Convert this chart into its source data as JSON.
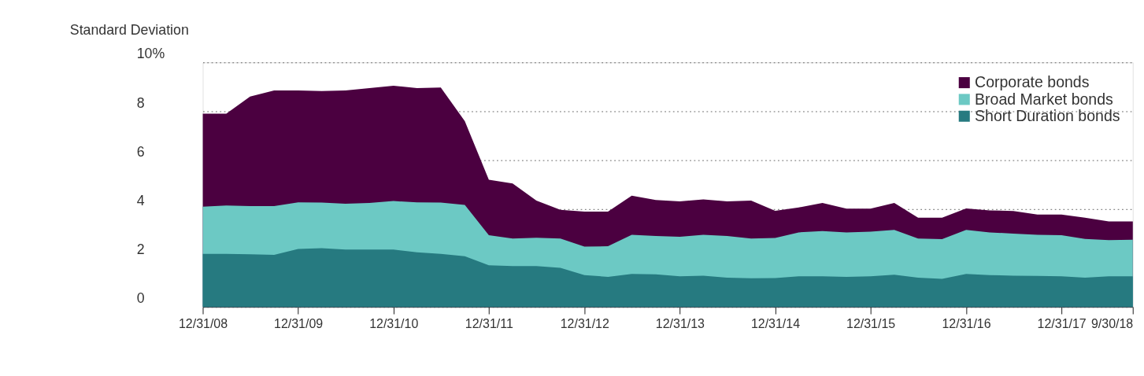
{
  "chart_data": {
    "type": "area",
    "ylabel": "Standard Deviation",
    "x": [
      "2008-12-31",
      "2009-03-31",
      "2009-06-30",
      "2009-09-30",
      "2009-12-31",
      "2010-03-31",
      "2010-06-30",
      "2010-09-30",
      "2010-12-31",
      "2011-03-31",
      "2011-06-30",
      "2011-09-30",
      "2011-12-31",
      "2012-03-31",
      "2012-06-30",
      "2012-09-30",
      "2012-12-31",
      "2013-03-31",
      "2013-06-30",
      "2013-09-30",
      "2013-12-31",
      "2014-03-31",
      "2014-06-30",
      "2014-09-30",
      "2014-12-31",
      "2015-03-31",
      "2015-06-30",
      "2015-09-30",
      "2015-12-31",
      "2016-03-31",
      "2016-06-30",
      "2016-09-30",
      "2016-12-31",
      "2017-03-31",
      "2017-06-30",
      "2017-09-30",
      "2017-12-31",
      "2018-03-31",
      "2018-06-30",
      "2018-09-30"
    ],
    "series": [
      {
        "name": "Corporate bonds",
        "color": "#4b0040",
        "values": [
          7.9,
          7.9,
          8.6,
          8.85,
          8.85,
          8.83,
          8.85,
          8.95,
          9.05,
          8.95,
          8.97,
          7.6,
          5.2,
          5.05,
          4.35,
          3.97,
          3.9,
          3.9,
          4.55,
          4.37,
          4.32,
          4.4,
          4.32,
          4.35,
          3.93,
          4.07,
          4.25,
          4.02,
          4.02,
          4.25,
          3.65,
          3.65,
          4.03,
          3.95,
          3.92,
          3.78,
          3.78,
          3.65,
          3.5,
          3.5
        ]
      },
      {
        "name": "Broad Market bonds",
        "color": "#6cc9c4",
        "values": [
          4.1,
          4.15,
          4.12,
          4.12,
          4.28,
          4.27,
          4.22,
          4.25,
          4.33,
          4.28,
          4.27,
          4.17,
          2.93,
          2.8,
          2.83,
          2.8,
          2.47,
          2.48,
          2.95,
          2.9,
          2.87,
          2.95,
          2.9,
          2.8,
          2.82,
          3.05,
          3.1,
          3.05,
          3.08,
          3.15,
          2.8,
          2.77,
          3.15,
          3.05,
          3.0,
          2.95,
          2.93,
          2.78,
          2.73,
          2.75
        ]
      },
      {
        "name": "Short Duration bonds",
        "color": "#267a80",
        "values": [
          2.17,
          2.17,
          2.15,
          2.13,
          2.37,
          2.4,
          2.35,
          2.35,
          2.35,
          2.23,
          2.17,
          2.07,
          1.7,
          1.67,
          1.67,
          1.6,
          1.3,
          1.23,
          1.35,
          1.33,
          1.25,
          1.28,
          1.2,
          1.17,
          1.18,
          1.25,
          1.25,
          1.23,
          1.25,
          1.32,
          1.2,
          1.15,
          1.35,
          1.3,
          1.28,
          1.27,
          1.25,
          1.2,
          1.25,
          1.25
        ]
      }
    ],
    "ylim": [
      0,
      10
    ],
    "yticks": [
      0,
      2,
      4,
      6,
      8,
      {
        "value": 10,
        "label": "10%"
      }
    ],
    "xlim": [
      "2008-12-31",
      "2018-09-30"
    ],
    "xticks": [
      {
        "value": "2008-12-31",
        "label": "12/31/08"
      },
      {
        "value": "2009-12-31",
        "label": "12/31/09"
      },
      {
        "value": "2010-12-31",
        "label": "12/31/10"
      },
      {
        "value": "2011-12-31",
        "label": "12/31/11"
      },
      {
        "value": "2012-12-31",
        "label": "12/31/12"
      },
      {
        "value": "2013-12-31",
        "label": "12/31/13"
      },
      {
        "value": "2014-12-31",
        "label": "12/31/14"
      },
      {
        "value": "2015-12-31",
        "label": "12/31/15"
      },
      {
        "value": "2016-12-31",
        "label": "12/31/16"
      },
      {
        "value": "2017-12-31",
        "label": "12/31/17"
      },
      {
        "value": "2018-09-30",
        "label": "9/30/18"
      }
    ],
    "grid": "y",
    "legend": "top right"
  }
}
